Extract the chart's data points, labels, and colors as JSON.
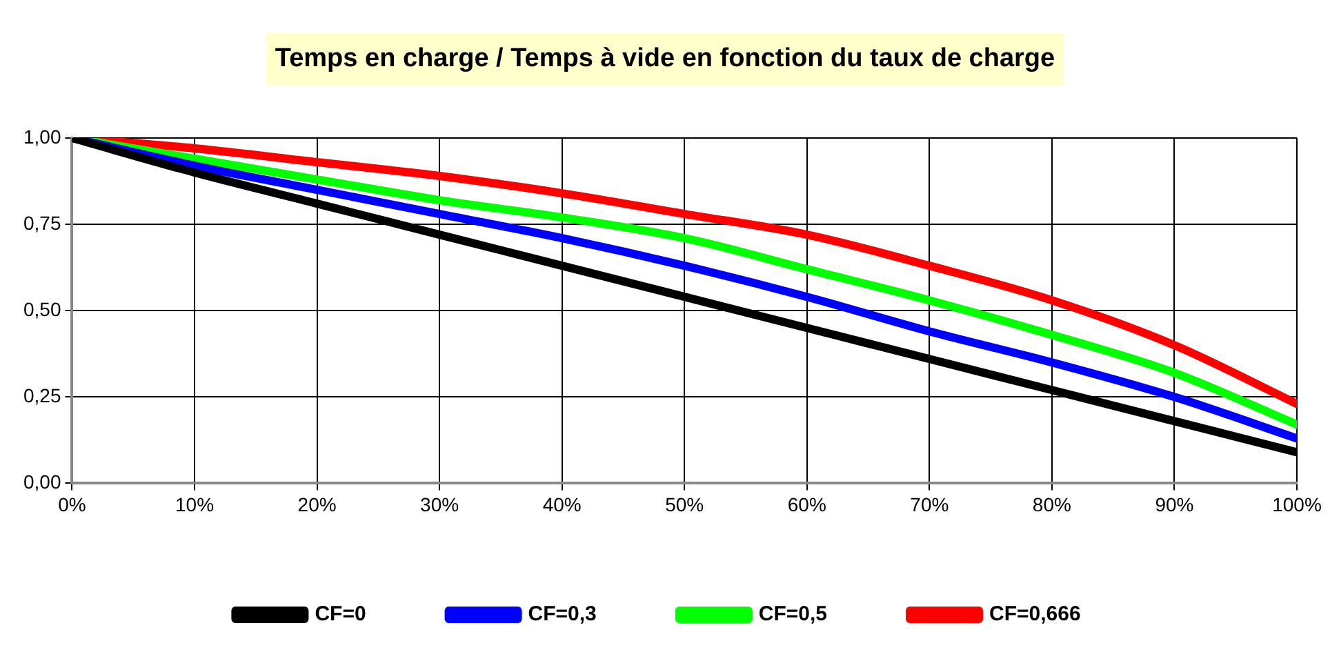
{
  "chart_data": {
    "type": "line",
    "title": "Temps en charge / Temps à vide en fonction du taux de charge",
    "x": [
      0,
      10,
      20,
      30,
      40,
      50,
      60,
      70,
      80,
      90,
      100
    ],
    "series": [
      {
        "name": "CF=0",
        "color": "#000000",
        "values": [
          1.0,
          0.9,
          0.81,
          0.72,
          0.63,
          0.54,
          0.45,
          0.36,
          0.27,
          0.18,
          0.09
        ]
      },
      {
        "name": "CF=0,3",
        "color": "#0000ff",
        "values": [
          1.0,
          0.92,
          0.85,
          0.78,
          0.71,
          0.63,
          0.54,
          0.44,
          0.35,
          0.25,
          0.13
        ]
      },
      {
        "name": "CF=0,5",
        "color": "#00ff00",
        "values": [
          1.0,
          0.94,
          0.88,
          0.82,
          0.77,
          0.71,
          0.62,
          0.53,
          0.43,
          0.32,
          0.17
        ]
      },
      {
        "name": "CF=0,666",
        "color": "#ff0000",
        "values": [
          1.0,
          0.97,
          0.93,
          0.89,
          0.84,
          0.78,
          0.72,
          0.63,
          0.53,
          0.4,
          0.23
        ]
      }
    ],
    "xlim": [
      0,
      100
    ],
    "xticks": [
      {
        "value": 0,
        "label": "0%"
      },
      {
        "value": 10,
        "label": "10%"
      },
      {
        "value": 20,
        "label": "20%"
      },
      {
        "value": 30,
        "label": "30%"
      },
      {
        "value": 40,
        "label": "40%"
      },
      {
        "value": 50,
        "label": "50%"
      },
      {
        "value": 60,
        "label": "60%"
      },
      {
        "value": 70,
        "label": "70%"
      },
      {
        "value": 80,
        "label": "80%"
      },
      {
        "value": 90,
        "label": "90%"
      },
      {
        "value": 100,
        "label": "100%"
      }
    ],
    "ylim": [
      0,
      1
    ],
    "yticks": [
      {
        "value": 0,
        "label": "0,00"
      },
      {
        "value": 0.25,
        "label": "0,25"
      },
      {
        "value": 0.5,
        "label": "0,50"
      },
      {
        "value": 0.75,
        "label": "0,75"
      },
      {
        "value": 1,
        "label": "1,00"
      }
    ],
    "grid": true,
    "legend": "bottom",
    "marker": "none",
    "line_style": "solid"
  }
}
